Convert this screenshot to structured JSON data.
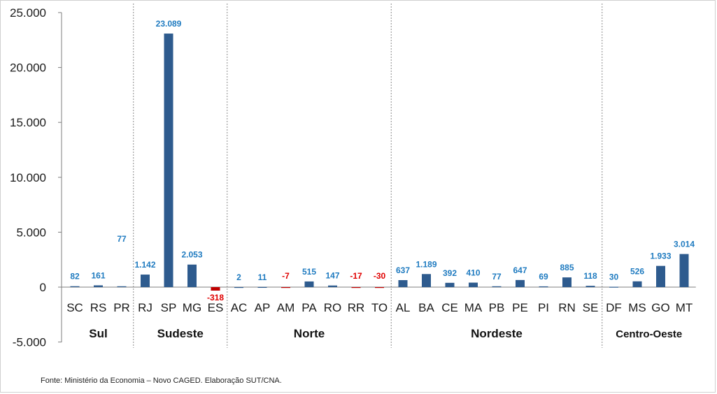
{
  "source_note": "Fonte: Ministério da Economia – Novo CAGED. Elaboração SUT/CNA.",
  "colors": {
    "positive": "#2E5B8E",
    "negative": "#C00000",
    "positive_label": "#1F7BC0",
    "negative_label": "#E00000"
  },
  "chart_data": {
    "type": "bar",
    "title": "",
    "xlabel": "",
    "ylabel": "",
    "ylim": [
      -5000,
      25000
    ],
    "yticks": [
      -5000,
      0,
      5000,
      10000,
      15000,
      20000,
      25000
    ],
    "ytick_labels": [
      "-5.000",
      "0",
      "5.000",
      "10.000",
      "15.000",
      "20.000",
      "25.000"
    ],
    "grid": false,
    "legend": "none",
    "categories": [
      "SC",
      "RS",
      "PR",
      "RJ",
      "SP",
      "MG",
      "ES",
      "AC",
      "AP",
      "AM",
      "PA",
      "RO",
      "RR",
      "TO",
      "AL",
      "BA",
      "CE",
      "MA",
      "PB",
      "PE",
      "PI",
      "RN",
      "SE",
      "DF",
      "MS",
      "GO",
      "MT"
    ],
    "values": [
      82,
      161,
      77,
      1142,
      23089,
      2053,
      -318,
      2,
      11,
      -7,
      515,
      147,
      -17,
      -30,
      637,
      1189,
      392,
      410,
      77,
      647,
      69,
      885,
      118,
      30,
      526,
      1933,
      3014
    ],
    "value_labels": [
      "82",
      "161",
      "77",
      "1.142",
      "23.089",
      "2.053",
      "-318",
      "2",
      "11",
      "-7",
      "515",
      "147",
      "-17",
      "-30",
      "637",
      "1.189",
      "392",
      "410",
      "77",
      "647",
      "69",
      "885",
      "118",
      "30",
      "526",
      "1.933",
      "3.014"
    ],
    "groups": [
      {
        "name": "Sul",
        "count": 3
      },
      {
        "name": "Sudeste",
        "count": 4
      },
      {
        "name": "Norte",
        "count": 7
      },
      {
        "name": "Nordeste",
        "count": 9
      },
      {
        "name": "Centro-Oeste",
        "count": 4
      }
    ]
  }
}
